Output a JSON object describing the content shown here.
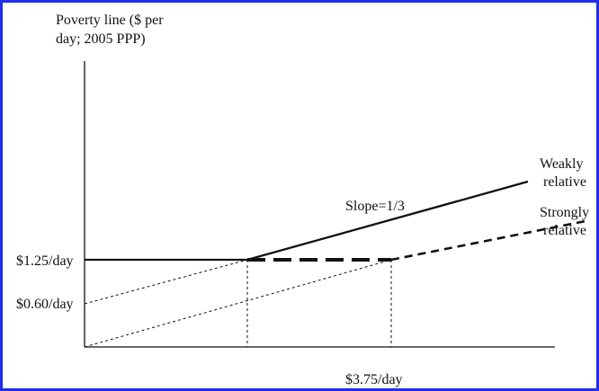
{
  "y_axis_label": [
    "Poverty line ($ per",
    "day; 2005 PPP)"
  ],
  "tick_labels": {
    "y_high": "$1.25/day",
    "y_low": "$0.60/day",
    "x_label": "$3.75/day"
  },
  "annotations": {
    "slope": "Slope=1/3",
    "weakly_relative": [
      "Weakly",
      "relative"
    ],
    "strongly_relative": [
      "Strongly",
      "relative"
    ]
  },
  "colors": {
    "frame": "#1f2fe6",
    "lines": "#111111"
  }
}
